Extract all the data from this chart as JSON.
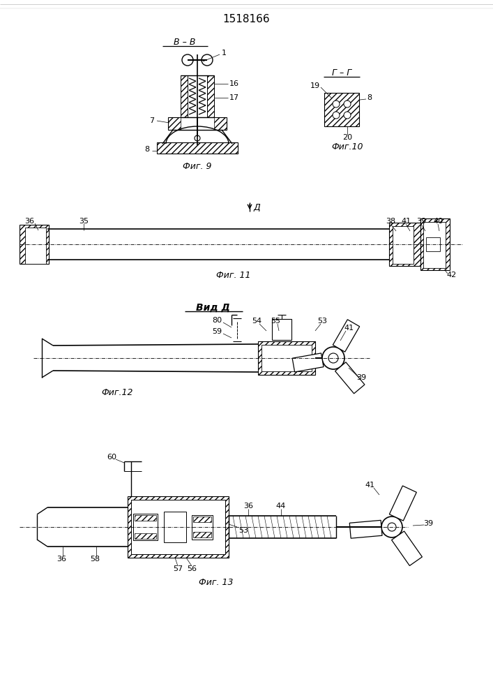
{
  "title": "1518166",
  "bg_color": "#ffffff",
  "line_color": "#000000",
  "fig9_label": "Фиг. 9",
  "fig10_label": "Фиг.10",
  "fig11_label": "Фиг. 11",
  "fig12_label": "Фиг.12",
  "fig13_label": "Фиг. 13",
  "vid_d_label": "Вид Д",
  "section_bv": "В – В",
  "section_gg": "Г – Г"
}
